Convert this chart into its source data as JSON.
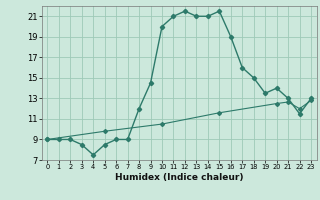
{
  "title": "",
  "xlabel": "Humidex (Indice chaleur)",
  "bg_color": "#cce8dc",
  "line_color": "#2d7a6a",
  "grid_color": "#9ec9b8",
  "curve1_x": [
    0,
    1,
    2,
    3,
    4,
    5,
    6,
    7,
    8,
    9,
    10,
    11,
    12,
    13,
    14,
    15,
    16,
    17,
    18,
    19,
    20,
    21,
    22,
    23
  ],
  "curve1_y": [
    9,
    9,
    9,
    8.5,
    7.5,
    8.5,
    9,
    9,
    12,
    14.5,
    20,
    21,
    21.5,
    21,
    21,
    21.5,
    19,
    16,
    15,
    13.5,
    14,
    13,
    11.5,
    13
  ],
  "curve2_x": [
    0,
    5,
    10,
    15,
    20,
    21,
    22,
    23
  ],
  "curve2_y": [
    9,
    9.8,
    10.5,
    11.6,
    12.5,
    12.65,
    12.0,
    12.8
  ],
  "xlim": [
    -0.5,
    23.5
  ],
  "ylim": [
    7,
    22
  ],
  "yticks": [
    7,
    9,
    11,
    13,
    15,
    17,
    19,
    21
  ],
  "xticks": [
    0,
    1,
    2,
    3,
    4,
    5,
    6,
    7,
    8,
    9,
    10,
    11,
    12,
    13,
    14,
    15,
    16,
    17,
    18,
    19,
    20,
    21,
    22,
    23
  ],
  "xtick_labels": [
    "0",
    "1",
    "2",
    "3",
    "4",
    "5",
    "6",
    "7",
    "8",
    "9",
    "10",
    "11",
    "12",
    "13",
    "14",
    "15",
    "16",
    "17",
    "18",
    "19",
    "20",
    "21",
    "22",
    "23"
  ]
}
